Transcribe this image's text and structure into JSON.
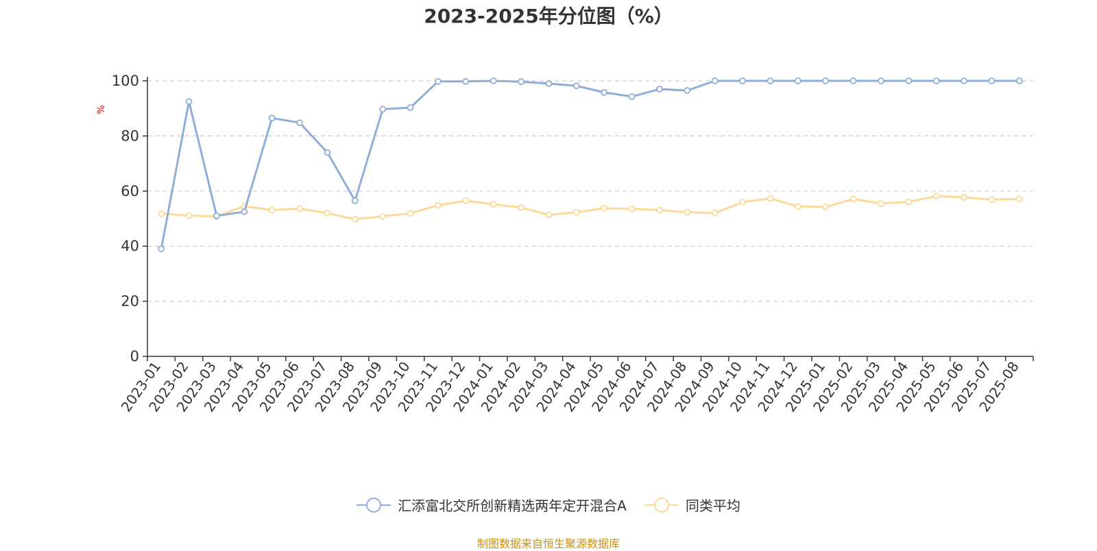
{
  "chart_data": {
    "type": "line",
    "title": "2023-2025年分位图（%）",
    "ylabel": "%",
    "xlabel": "",
    "ylim": [
      0,
      100
    ],
    "yticks": [
      0,
      20,
      40,
      60,
      80,
      100
    ],
    "grid": true,
    "legend_position": "bottom",
    "categories": [
      "2023-01",
      "2023-02",
      "2023-03",
      "2023-04",
      "2023-05",
      "2023-06",
      "2023-07",
      "2023-08",
      "2023-09",
      "2023-10",
      "2023-11",
      "2023-12",
      "2024-01",
      "2024-02",
      "2024-03",
      "2024-04",
      "2024-05",
      "2024-06",
      "2024-07",
      "2024-08",
      "2024-09",
      "2024-10",
      "2024-11",
      "2024-12",
      "2025-01",
      "2025-02",
      "2025-03",
      "2025-04",
      "2025-05",
      "2025-06",
      "2025-07",
      "2025-08"
    ],
    "series": [
      {
        "name": "汇添富北交所创新精选两年定开混合A",
        "color": "#8fadd9",
        "values": [
          39,
          92.5,
          51,
          52.5,
          86.5,
          84.8,
          74,
          56.5,
          89.7,
          90.3,
          99.8,
          99.8,
          100,
          99.7,
          99,
          98.2,
          95.8,
          94.3,
          97,
          96.5,
          100,
          100,
          100,
          100,
          100,
          100,
          100,
          100,
          100,
          100,
          100,
          100
        ]
      },
      {
        "name": "同类平均",
        "color": "#fbd996",
        "values": [
          51.8,
          51.1,
          50.8,
          54.5,
          53.1,
          53.6,
          52,
          49.8,
          50.8,
          51.9,
          54.8,
          56.5,
          55.2,
          54,
          51.4,
          52.3,
          53.8,
          53.5,
          53.1,
          52.3,
          52,
          56,
          57.3,
          54.4,
          54.2,
          57.1,
          55.5,
          56.1,
          58.2,
          57.7,
          56.9,
          57.1
        ]
      }
    ]
  },
  "source_text": "制图数据来自恒生聚源数据库"
}
